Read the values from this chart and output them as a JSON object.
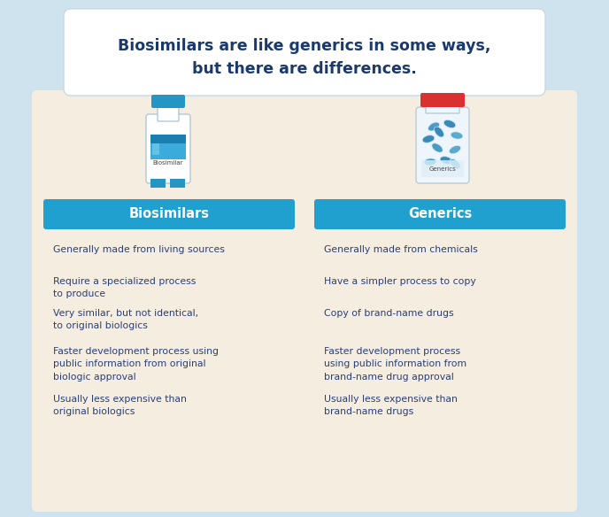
{
  "title_line1": "Biosimilars are like generics in some ways,",
  "title_line2": "but there are differences.",
  "title_color": "#1b3a6b",
  "background_outer": "#cfe3ee",
  "background_inner": "#f4ede0",
  "header_color": "#1fa0cf",
  "header_text_color": "#ffffff",
  "text_color": "#2a3f7a",
  "col1_header": "Biosimilars",
  "col2_header": "Generics",
  "col1_items": [
    "Generally made from living sources",
    "Require a specialized process\nto produce",
    "Very similar, but not identical,\nto original biologics",
    "Faster development process using\npublic information from original\nbiologic approval",
    "Usually less expensive than\noriginal biologics"
  ],
  "col2_items": [
    "Generally made from chemicals",
    "Have a simpler process to copy",
    "Copy of brand-name drugs",
    "Faster development process\nusing public information from\nbrand-name drug approval",
    "Usually less expensive than\nbrand-name drugs"
  ],
  "fig_width": 6.88,
  "fig_height": 5.84,
  "dpi": 100
}
